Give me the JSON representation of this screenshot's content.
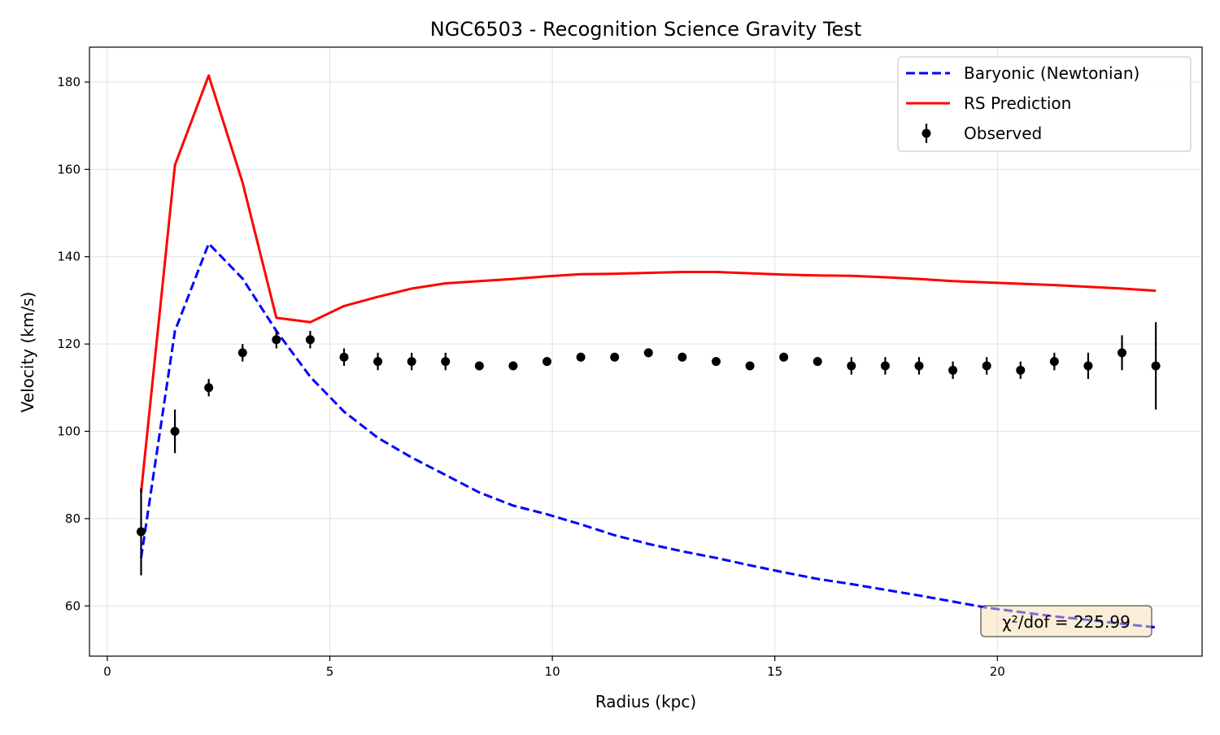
{
  "chart_data": {
    "type": "line",
    "title": "NGC6503 - Recognition Science Gravity Test",
    "xlabel": "Radius (kpc)",
    "ylabel": "Velocity (km/s)",
    "xlim": [
      -0.4,
      24.6
    ],
    "ylim": [
      48.5,
      188
    ],
    "xticks": [
      0,
      5,
      10,
      15,
      20
    ],
    "yticks": [
      60,
      80,
      100,
      120,
      140,
      160,
      180
    ],
    "grid": true,
    "legend_position": "top-right",
    "annotation": "χ²/dof = 225.99",
    "series": [
      {
        "name": "Baryonic (Newtonian)",
        "style": "dashed",
        "color": "#0000ff",
        "x": [
          0.76,
          1.52,
          2.28,
          3.04,
          3.8,
          4.56,
          5.32,
          6.08,
          6.84,
          7.6,
          8.36,
          9.12,
          9.88,
          10.64,
          11.4,
          12.16,
          12.92,
          13.68,
          14.44,
          15.2,
          15.96,
          16.72,
          17.48,
          18.24,
          19.0,
          19.76,
          20.52,
          21.28,
          22.04,
          22.8,
          23.56
        ],
        "y": [
          71,
          123,
          143,
          135,
          123,
          112.5,
          104.5,
          98.5,
          94,
          90,
          86,
          83,
          81,
          78.7,
          76.2,
          74.2,
          72.5,
          71,
          69.3,
          67.7,
          66.2,
          65,
          63.7,
          62.4,
          61,
          59.6,
          58.6,
          57.6,
          56.8,
          55.9,
          55.1
        ]
      },
      {
        "name": "RS Prediction",
        "style": "solid",
        "color": "#ff0000",
        "x": [
          0.76,
          1.52,
          2.28,
          3.04,
          3.8,
          4.56,
          5.32,
          6.08,
          6.84,
          7.6,
          8.36,
          9.12,
          9.88,
          10.64,
          11.4,
          12.16,
          12.92,
          13.68,
          14.44,
          15.2,
          15.96,
          16.72,
          17.48,
          18.24,
          19.0,
          19.76,
          20.52,
          21.28,
          22.04,
          22.8,
          23.56
        ],
        "y": [
          86,
          161,
          181.5,
          157,
          126,
          125,
          128.7,
          130.8,
          132.7,
          133.9,
          134.4,
          134.9,
          135.5,
          136,
          136.1,
          136.3,
          136.5,
          136.5,
          136.2,
          135.9,
          135.7,
          135.6,
          135.3,
          134.9,
          134.4,
          134.1,
          133.8,
          133.5,
          133.1,
          132.7,
          132.2
        ]
      },
      {
        "name": "Observed",
        "style": "errorbar",
        "color": "#000000",
        "x": [
          0.76,
          1.52,
          2.28,
          3.04,
          3.8,
          4.56,
          5.32,
          6.08,
          6.84,
          7.6,
          8.36,
          9.12,
          9.88,
          10.64,
          11.4,
          12.16,
          12.92,
          13.68,
          14.44,
          15.2,
          15.96,
          16.72,
          17.48,
          18.24,
          19.0,
          19.76,
          20.52,
          21.28,
          22.04,
          22.8,
          23.56
        ],
        "y": [
          77,
          100,
          110,
          118,
          121,
          121,
          117,
          116,
          116,
          116,
          115,
          115,
          116,
          117,
          117,
          118,
          117,
          116,
          115,
          117,
          116,
          115,
          115,
          115,
          114,
          115,
          114,
          116,
          115,
          118,
          115
        ],
        "err": [
          10,
          5,
          2,
          2,
          2,
          2,
          2,
          2,
          2,
          2,
          1,
          1,
          1,
          1,
          1,
          1,
          1,
          1,
          1,
          1,
          1,
          2,
          2,
          2,
          2,
          2,
          2,
          2,
          3,
          4,
          10
        ]
      }
    ]
  }
}
